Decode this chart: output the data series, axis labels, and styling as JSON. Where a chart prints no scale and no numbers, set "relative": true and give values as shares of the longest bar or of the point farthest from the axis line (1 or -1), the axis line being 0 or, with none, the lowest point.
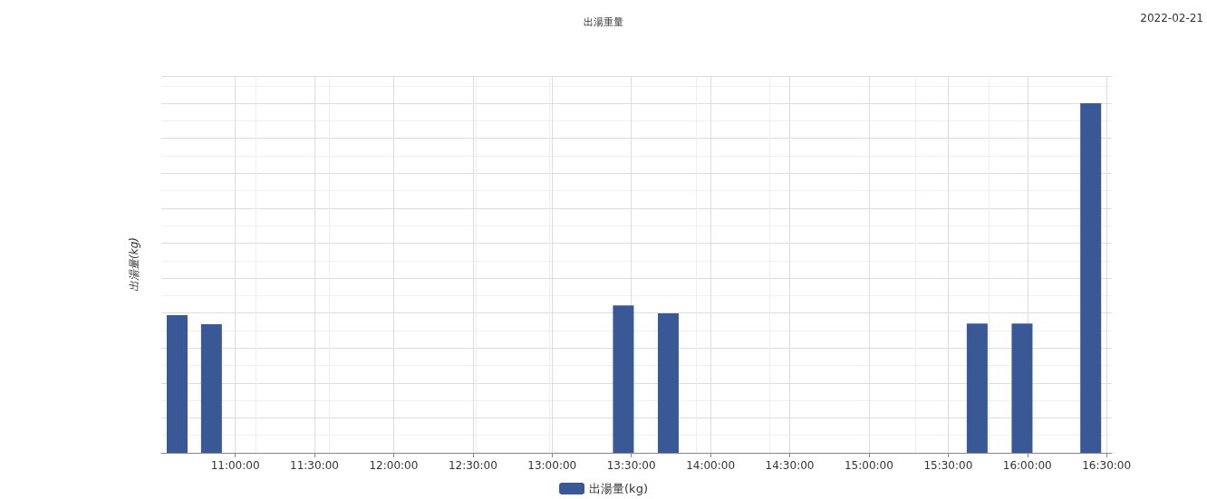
{
  "chart_data": {
    "type": "bar",
    "title": "出湯重量",
    "ylabel": "出湯量(kg)",
    "annotations": [
      "2022-02-21"
    ],
    "relative": true,
    "x": [
      "2022-02-21T10:38",
      "2022-02-21T10:51",
      "2022-02-21T13:27",
      "2022-02-21T13:44",
      "2022-02-21T15:41",
      "2022-02-21T15:58",
      "2022-02-21T16:24"
    ],
    "series": [
      {
        "name": "出湯量(kg)",
        "color": "#3a5896",
        "values": [
          0.394,
          0.368,
          0.422,
          0.399,
          0.37,
          0.37,
          1
        ]
      }
    ],
    "xlim": [
      "2022-02-21T10:32",
      "2022-02-21T16:32"
    ],
    "xticks": [
      {
        "value": "2022-02-21T11:00",
        "label": "11:00:00"
      },
      {
        "value": "2022-02-21T11:30",
        "label": "11:30:00"
      },
      {
        "value": "2022-02-21T12:00",
        "label": "12:00:00"
      },
      {
        "value": "2022-02-21T12:30",
        "label": "12:30:00"
      },
      {
        "value": "2022-02-21T13:00",
        "label": "13:00:00"
      },
      {
        "value": "2022-02-21T13:30",
        "label": "13:30:00"
      },
      {
        "value": "2022-02-21T14:00",
        "label": "14:00:00"
      },
      {
        "value": "2022-02-21T14:30",
        "label": "14:30:00"
      },
      {
        "value": "2022-02-21T15:00",
        "label": "15:00:00"
      },
      {
        "value": "2022-02-21T15:30",
        "label": "15:30:00"
      },
      {
        "value": "2022-02-21T16:00",
        "label": "16:00:00"
      },
      {
        "value": "2022-02-21T16:30",
        "label": "16:30:00"
      }
    ],
    "grid": true,
    "legend": "bottom"
  }
}
